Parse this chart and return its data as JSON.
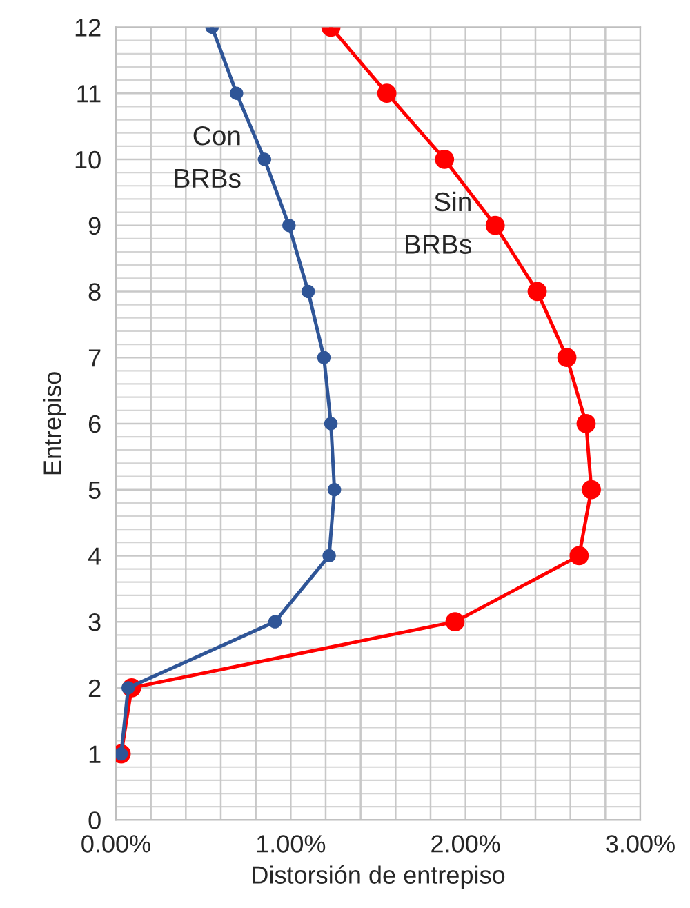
{
  "chart_data": {
    "type": "line",
    "xlabel": "Distorsión de entrepiso",
    "ylabel": "Entrepiso",
    "series": [
      {
        "name": "Con\nBRBs",
        "color": "#2f5597",
        "x": [
          0.03,
          0.07,
          0.91,
          1.22,
          1.25,
          1.23,
          1.19,
          1.1,
          0.99,
          0.85,
          0.69,
          0.55
        ],
        "values": [
          1,
          2,
          3,
          4,
          5,
          6,
          7,
          8,
          9,
          10,
          11,
          12
        ]
      },
      {
        "name": "Sin\nBRBs",
        "color": "#ff0000",
        "x": [
          0.03,
          0.09,
          1.94,
          2.65,
          2.72,
          2.69,
          2.58,
          2.41,
          2.17,
          1.88,
          1.55,
          1.23
        ],
        "values": [
          1,
          2,
          3,
          4,
          5,
          6,
          7,
          8,
          9,
          10,
          11,
          12
        ]
      }
    ],
    "xlim": [
      0,
      3
    ],
    "ylim": [
      0,
      12
    ],
    "xticks": [
      {
        "value": 0,
        "label": "0.00%"
      },
      {
        "value": 0.2,
        "label": null
      },
      {
        "value": 0.4,
        "label": null
      },
      {
        "value": 0.6,
        "label": null
      },
      {
        "value": 0.8,
        "label": null
      },
      {
        "value": 1,
        "label": "1.00%"
      },
      {
        "value": 1.2,
        "label": null
      },
      {
        "value": 1.4,
        "label": null
      },
      {
        "value": 1.6,
        "label": null
      },
      {
        "value": 1.8,
        "label": null
      },
      {
        "value": 2,
        "label": "2.00%"
      },
      {
        "value": 2.2,
        "label": null
      },
      {
        "value": 2.4,
        "label": null
      },
      {
        "value": 2.6,
        "label": null
      },
      {
        "value": 2.8,
        "label": null
      },
      {
        "value": 3,
        "label": "3.00%"
      }
    ],
    "yticks": [
      0,
      1,
      2,
      3,
      4,
      5,
      6,
      7,
      8,
      9,
      10,
      11,
      12
    ],
    "grid": true,
    "marker": "circle",
    "line_style": "solid",
    "legend": false
  }
}
